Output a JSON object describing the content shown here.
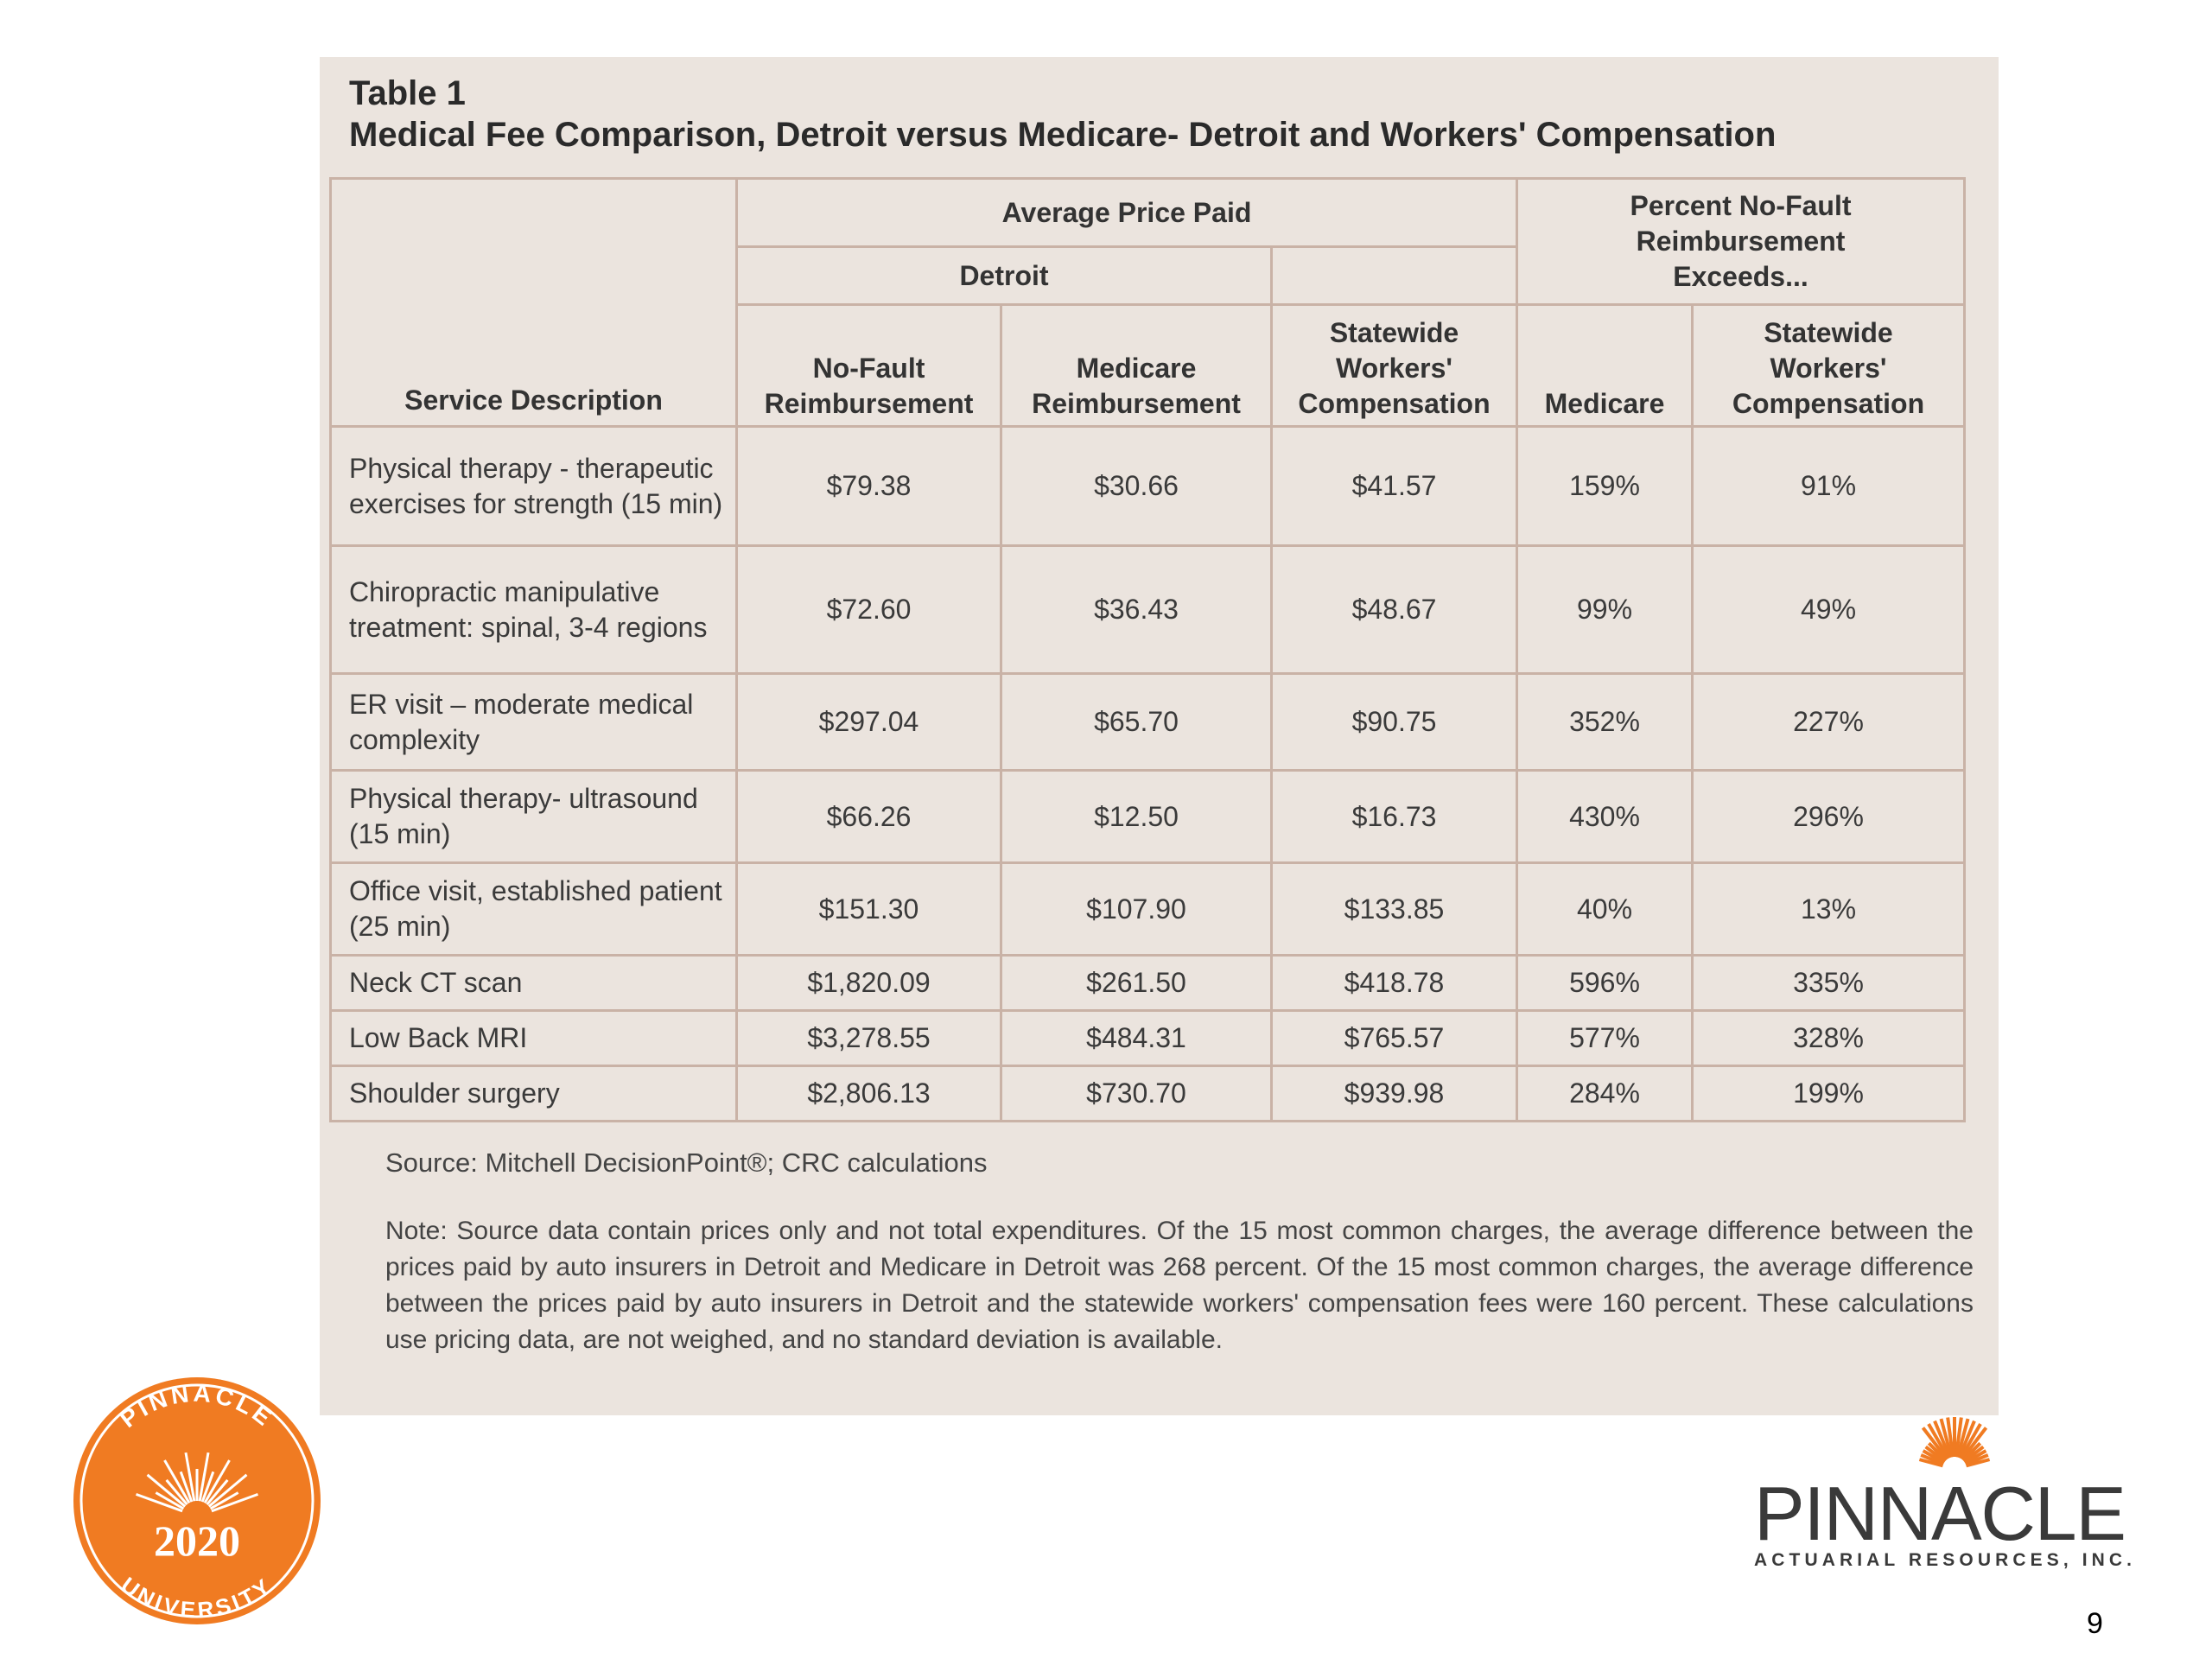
{
  "slide": {
    "table": {
      "label": "Table 1",
      "title": "Medical Fee Comparison, Detroit versus Medicare- Detroit and Workers' Compensation",
      "header": {
        "service": "Service Description",
        "avg_price": "Average Price Paid",
        "percent": "Percent No-Fault Reimbursement Exceeds...",
        "detroit": "Detroit",
        "columns": [
          "No-Fault Reimbursement",
          "Medicare Reimbursement",
          "Statewide Workers' Compensation",
          "Medicare",
          "Statewide Workers' Compensation"
        ]
      },
      "rows": [
        [
          "Physical therapy - therapeutic exercises for strength (15 min)",
          "$79.38",
          "$30.66",
          "$41.57",
          "159%",
          "91%"
        ],
        [
          "Chiropractic manipulative treatment: spinal, 3-4 regions",
          "$72.60",
          "$36.43",
          "$48.67",
          "99%",
          "49%"
        ],
        [
          "ER visit – moderate medical complexity",
          "$297.04",
          "$65.70",
          "$90.75",
          "352%",
          "227%"
        ],
        [
          "Physical therapy- ultrasound (15 min)",
          "$66.26",
          "$12.50",
          "$16.73",
          "430%",
          "296%"
        ],
        [
          "Office visit, established patient (25 min)",
          "$151.30",
          "$107.90",
          "$133.85",
          "40%",
          "13%"
        ],
        [
          "Neck CT scan",
          "$1,820.09",
          "$261.50",
          "$418.78",
          "596%",
          "335%"
        ],
        [
          "Low Back MRI",
          "$3,278.55",
          "$484.31",
          "$765.57",
          "577%",
          "328%"
        ],
        [
          "Shoulder surgery",
          "$2,806.13",
          "$730.70",
          "$939.98",
          "284%",
          "199%"
        ]
      ],
      "source": "Source: Mitchell DecisionPoint®; CRC calculations",
      "note": "Note:  Source data contain prices only and not total expenditures.  Of the 15 most common charges, the average difference between the prices paid by auto insurers in Detroit and Medicare in Detroit was 268 percent.  Of the 15 most common charges, the average difference between the prices paid by auto insurers in Detroit and the statewide workers' compensation fees were 160 percent. These calculations use pricing data, are not weighed, and no standard deviation is available."
    },
    "badge": {
      "top": "PINNACLE",
      "year": "2020",
      "bottom": "UNIVERSITY"
    },
    "logo": {
      "name": "PINNACLE",
      "tagline": "ACTUARIAL RESOURCES, INC."
    },
    "page_number": "9"
  }
}
